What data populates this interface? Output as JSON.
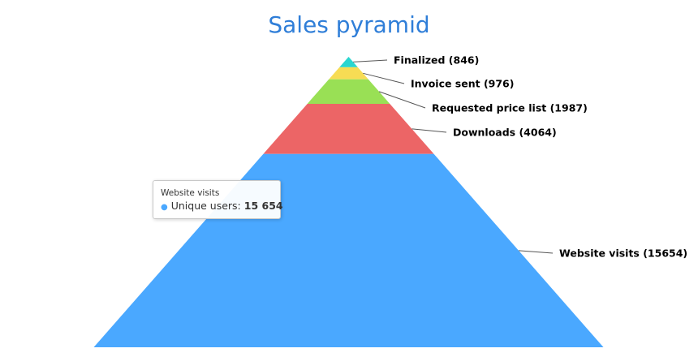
{
  "chart_data": {
    "type": "pyramid",
    "title": "Sales pyramid",
    "series_name": "Unique users",
    "stages": [
      {
        "name": "Website visits",
        "value": 15654,
        "label": "Website visits (15654)",
        "color": "#4aa8ff"
      },
      {
        "name": "Downloads",
        "value": 4064,
        "label": "Downloads (4064)",
        "color": "#ec6566"
      },
      {
        "name": "Requested price list",
        "value": 1987,
        "label": "Requested price list (1987)",
        "color": "#99e055"
      },
      {
        "name": "Invoice sent",
        "value": 976,
        "label": "Invoice sent (976)",
        "color": "#f7dc54"
      },
      {
        "name": "Finalized",
        "value": 846,
        "label": "Finalized (846)",
        "color": "#2ad6d0"
      }
    ]
  },
  "tooltip": {
    "header": "Website visits",
    "series_label": "Unique users: ",
    "value": "15 654"
  }
}
